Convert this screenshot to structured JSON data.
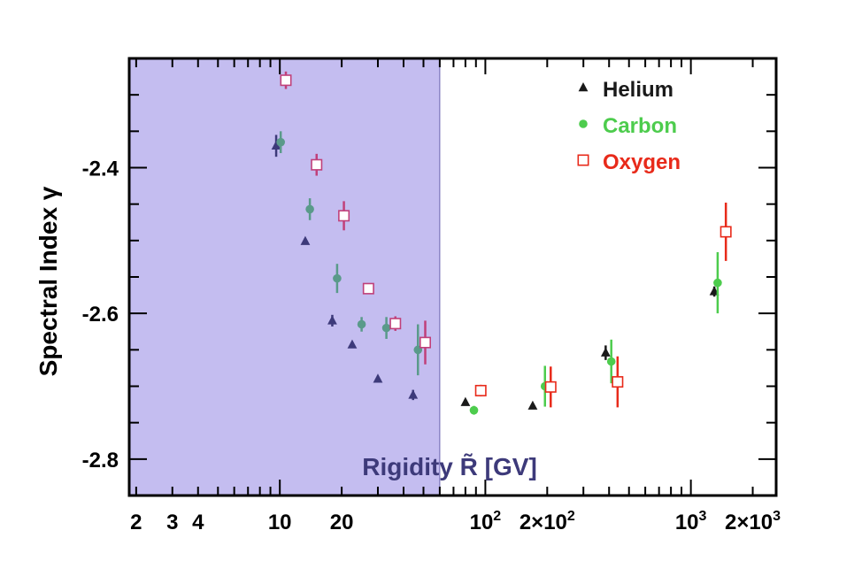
{
  "chart_data": {
    "type": "scatter",
    "title": "",
    "xlabel": "Rigidity R̃ [GV]",
    "ylabel": "Spectral Index γ",
    "x_scale": "log",
    "xlim": [
      1.85,
      2600
    ],
    "ylim": [
      -2.85,
      -2.25
    ],
    "x_tick_labels": [
      {
        "value": 2,
        "label": "2"
      },
      {
        "value": 3,
        "label": "3"
      },
      {
        "value": 4,
        "label": "4"
      },
      {
        "value": 10,
        "label": "10"
      },
      {
        "value": 20,
        "label": "20"
      },
      {
        "value": 100,
        "label": "10",
        "sup": "2"
      },
      {
        "value": 200,
        "label": "2×10",
        "sup": "2"
      },
      {
        "value": 1000,
        "label": "10",
        "sup": "3"
      },
      {
        "value": 2000,
        "label": "2×10",
        "sup": "3"
      }
    ],
    "y_ticks": [
      -2.8,
      -2.6,
      -2.4
    ],
    "y_tick_labels": [
      "-2.8",
      "-2.6",
      "-2.4"
    ],
    "shaded_region": {
      "x_from": 1.85,
      "x_to": 60,
      "color": "#c4bdf0"
    },
    "legend_position": "top-right",
    "series": [
      {
        "name": "Helium",
        "marker": "triangle",
        "color": "#1a1a1a",
        "shaded_color": "#3d3a7a",
        "points": [
          {
            "x": 9.6,
            "y": -2.37,
            "err": 0.015
          },
          {
            "x": 13.3,
            "y": -2.501,
            "err": 0.004
          },
          {
            "x": 18.0,
            "y": -2.61,
            "err": 0.008
          },
          {
            "x": 22.5,
            "y": -2.643,
            "err": 0.004
          },
          {
            "x": 30.0,
            "y": -2.69,
            "err": 0.004
          },
          {
            "x": 44.5,
            "y": -2.712,
            "err": 0.007
          },
          {
            "x": 80.0,
            "y": -2.722,
            "err": 0.004
          },
          {
            "x": 170,
            "y": -2.727,
            "err": 0.004
          },
          {
            "x": 385,
            "y": -2.654,
            "err": 0.01
          },
          {
            "x": 1300,
            "y": -2.57,
            "err": 0.007
          }
        ]
      },
      {
        "name": "Carbon",
        "marker": "circle",
        "color": "#4dcc4d",
        "shaded_color": "#5a9a8a",
        "points": [
          {
            "x": 10.1,
            "y": -2.365,
            "err": 0.015
          },
          {
            "x": 14.0,
            "y": -2.457,
            "err": 0.015
          },
          {
            "x": 19.0,
            "y": -2.552,
            "err": 0.02
          },
          {
            "x": 25.0,
            "y": -2.615,
            "err": 0.01
          },
          {
            "x": 33.0,
            "y": -2.62,
            "err": 0.015
          },
          {
            "x": 47.0,
            "y": -2.65,
            "err": 0.035
          },
          {
            "x": 88.0,
            "y": -2.733,
            "err": 0.006
          },
          {
            "x": 195,
            "y": -2.7,
            "err": 0.028
          },
          {
            "x": 410,
            "y": -2.666,
            "err": 0.03
          },
          {
            "x": 1350,
            "y": -2.558,
            "err": 0.042
          }
        ]
      },
      {
        "name": "Oxygen",
        "marker": "open-square",
        "color": "#e82a1a",
        "shaded_color": "#c0407a",
        "points": [
          {
            "x": 10.7,
            "y": -2.28,
            "err": 0.012
          },
          {
            "x": 15.1,
            "y": -2.396,
            "err": 0.015
          },
          {
            "x": 20.5,
            "y": -2.466,
            "err": 0.02
          },
          {
            "x": 27.0,
            "y": -2.566,
            "err": 0.006
          },
          {
            "x": 36.5,
            "y": -2.614,
            "err": 0.01
          },
          {
            "x": 51.0,
            "y": -2.64,
            "err": 0.03
          },
          {
            "x": 95.0,
            "y": -2.706,
            "err": 0.008
          },
          {
            "x": 208,
            "y": -2.701,
            "err": 0.028
          },
          {
            "x": 440,
            "y": -2.694,
            "err": 0.035
          },
          {
            "x": 1480,
            "y": -2.488,
            "err": 0.04
          }
        ]
      }
    ]
  }
}
